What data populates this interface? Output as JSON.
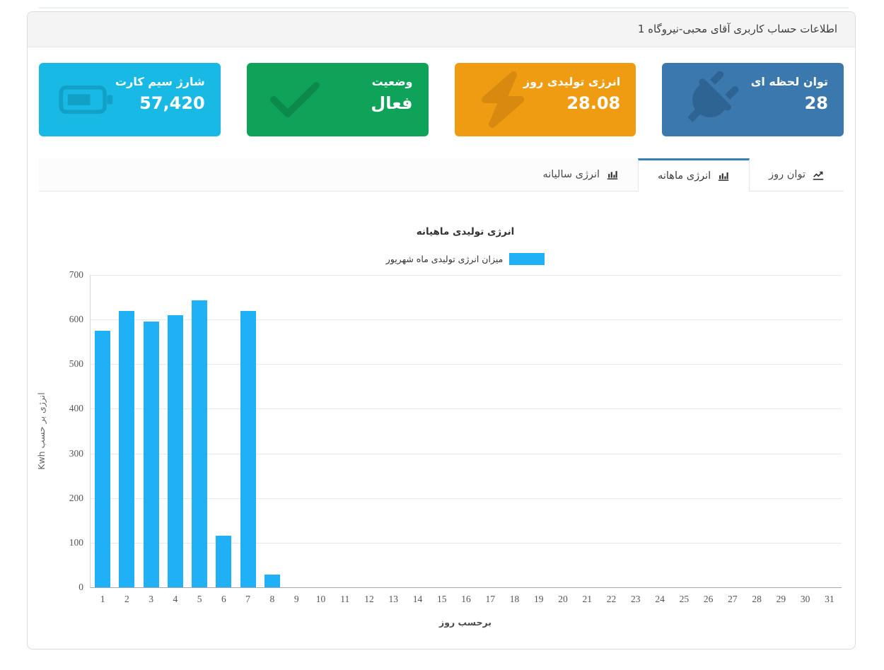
{
  "header": {
    "title": "اطلاعات حساب کاربری آقای محبی-نیروگاه 1"
  },
  "cards": [
    {
      "id": "instant-power",
      "title": "توان لحظه ای",
      "value": "28",
      "color": "#3a78ae",
      "icon_color": "#2e6493",
      "icon": "plug-icon"
    },
    {
      "id": "daily-energy",
      "title": "انرژی تولیدی روز",
      "value": "28.08",
      "color": "#f09c13",
      "icon_color": "#d8890f",
      "icon": "bolt-icon"
    },
    {
      "id": "status",
      "title": "وضعیت",
      "value": "فعال",
      "color": "#0fa35a",
      "icon_color": "#0c8a4c",
      "icon": "check-icon"
    },
    {
      "id": "sim-charge",
      "title": "شارژ سیم کارت",
      "value": "57,420",
      "color": "#18b9e4",
      "icon_color": "#12a0c7",
      "icon": "battery-icon"
    }
  ],
  "tabs": [
    {
      "label": "توان روز",
      "icon": "line-chart-icon",
      "active": false
    },
    {
      "label": "انرژی ماهانه",
      "icon": "bar-chart-icon",
      "active": true
    },
    {
      "label": "انرژی سالیانه",
      "icon": "bar-chart-icon",
      "active": false
    }
  ],
  "chart_data": {
    "type": "bar",
    "title": "انرژی تولیدی ماهیانه",
    "legend": "میزان انرژی تولیدی ماه شهریور",
    "legend_position": "top",
    "xlabel": "برحسب روز",
    "ylabel": "انرژی بر حسب Kwh",
    "categories": [
      1,
      2,
      3,
      4,
      5,
      6,
      7,
      8,
      9,
      10,
      11,
      12,
      13,
      14,
      15,
      16,
      17,
      18,
      19,
      20,
      21,
      22,
      23,
      24,
      25,
      26,
      27,
      28,
      29,
      30,
      31
    ],
    "values": [
      575,
      620,
      596,
      610,
      643,
      115,
      620,
      28.08,
      0,
      0,
      0,
      0,
      0,
      0,
      0,
      0,
      0,
      0,
      0,
      0,
      0,
      0,
      0,
      0,
      0,
      0,
      0,
      0,
      0,
      0,
      0
    ],
    "ylim": [
      0,
      700
    ],
    "ytick_step": 100,
    "grid": true,
    "bar_color": "#1fb0f6"
  }
}
